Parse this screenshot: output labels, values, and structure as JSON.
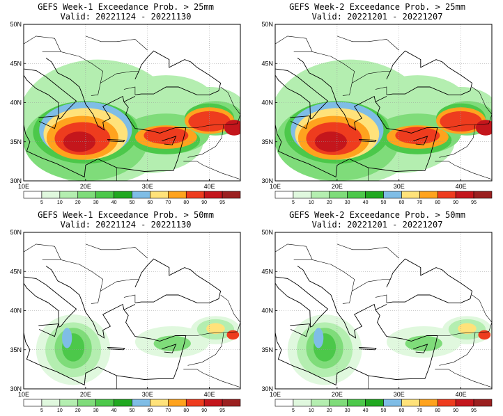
{
  "panels": [
    {
      "id": "w1-25",
      "title": "GEFS Week-1 Exceedance Prob. > 25mm",
      "valid": "Valid: 20221124 - 20221130",
      "threshold": 25
    },
    {
      "id": "w2-25",
      "title": "GEFS Week-2 Exceedance Prob. > 25mm",
      "valid": "Valid: 20221201 - 20221207",
      "threshold": 25
    },
    {
      "id": "w1-50",
      "title": "GEFS Week-1 Exceedance Prob. > 50mm",
      "valid": "Valid: 20221124 - 20221130",
      "threshold": 50
    },
    {
      "id": "w2-50",
      "title": "GEFS Week-2 Exceedance Prob. > 50mm",
      "valid": "Valid: 20221201 - 20221207",
      "threshold": 50
    }
  ],
  "map": {
    "lat_labels": [
      "30N",
      "35N",
      "40N",
      "45N",
      "50N"
    ],
    "lon_labels": [
      "10E",
      "20E",
      "30E",
      "40E"
    ],
    "lon_range": [
      10,
      45
    ],
    "lat_range": [
      30,
      50
    ]
  },
  "colorbar": {
    "levels": [
      "5",
      "10",
      "20",
      "30",
      "40",
      "50",
      "60",
      "70",
      "80",
      "90",
      "95"
    ],
    "colors": [
      "#ffffff",
      "#e0f8de",
      "#b4eeb0",
      "#7fdc7a",
      "#4cc84a",
      "#20a820",
      "#7fbde6",
      "#ffe27a",
      "#ffa31e",
      "#ee3c1e",
      "#c4161c",
      "#9b2020"
    ]
  }
}
